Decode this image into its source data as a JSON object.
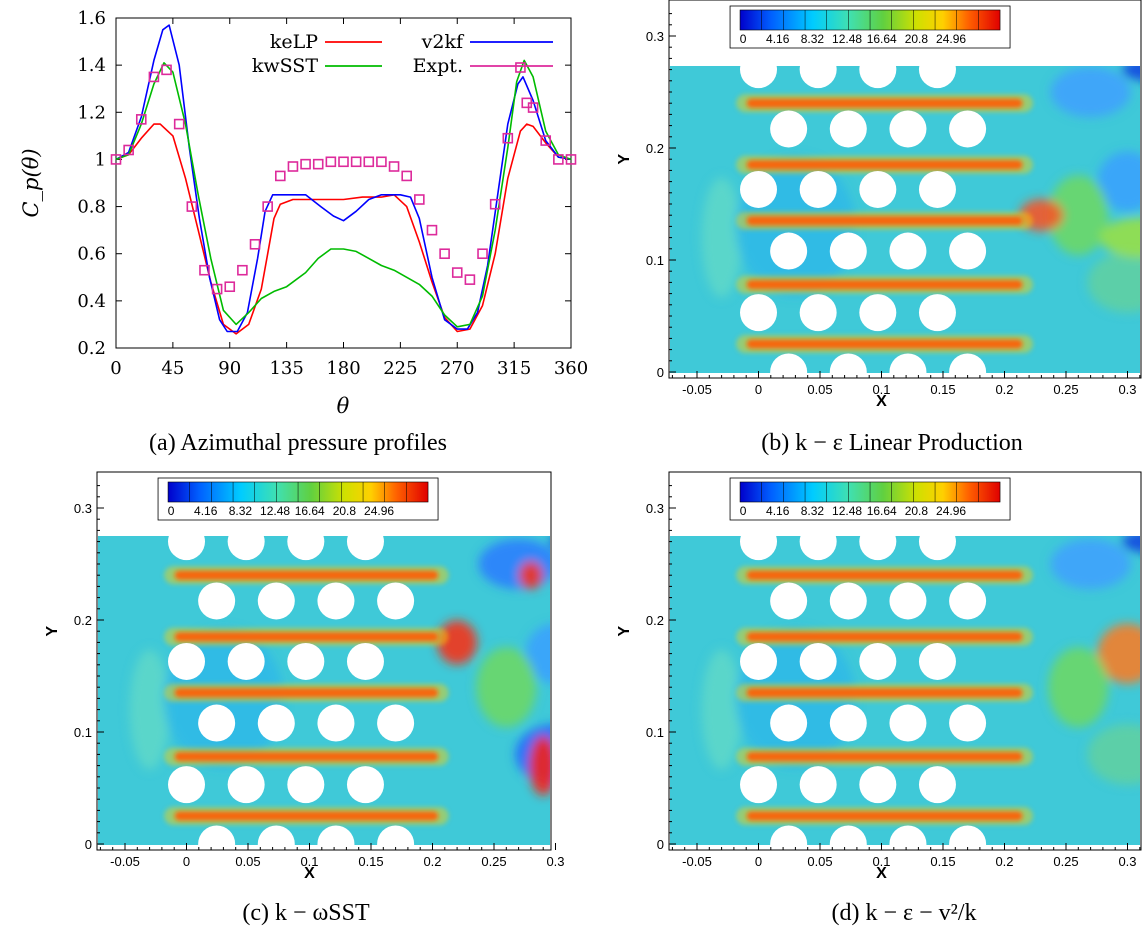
{
  "chart_data": [
    {
      "type": "line",
      "xlabel": "θ",
      "ylabel": "C_p(θ)",
      "xlim": [
        0,
        360
      ],
      "ylim": [
        0.2,
        1.6
      ],
      "x_ticks": [
        "0",
        "45",
        "90",
        "135",
        "180",
        "225",
        "270",
        "315",
        "360"
      ],
      "y_ticks": [
        "0.2",
        "0.4",
        "0.6",
        "0.8",
        "1",
        "1.2",
        "1.4",
        "1.6"
      ],
      "legend_placement": "top",
      "caption": "(a) Azimuthal pressure profiles",
      "series": [
        {
          "name": "keLP",
          "color": "#ff0000",
          "points": [
            [
              0,
              1.0
            ],
            [
              10,
              1.02
            ],
            [
              20,
              1.09
            ],
            [
              30,
              1.15
            ],
            [
              35,
              1.15
            ],
            [
              45,
              1.1
            ],
            [
              55,
              0.92
            ],
            [
              65,
              0.7
            ],
            [
              75,
              0.48
            ],
            [
              85,
              0.3
            ],
            [
              95,
              0.26
            ],
            [
              105,
              0.3
            ],
            [
              115,
              0.45
            ],
            [
              120,
              0.6
            ],
            [
              125,
              0.75
            ],
            [
              130,
              0.81
            ],
            [
              140,
              0.83
            ],
            [
              150,
              0.83
            ],
            [
              165,
              0.83
            ],
            [
              180,
              0.83
            ],
            [
              195,
              0.84
            ],
            [
              210,
              0.84
            ],
            [
              220,
              0.85
            ],
            [
              230,
              0.8
            ],
            [
              240,
              0.65
            ],
            [
              250,
              0.48
            ],
            [
              260,
              0.33
            ],
            [
              270,
              0.27
            ],
            [
              280,
              0.28
            ],
            [
              290,
              0.38
            ],
            [
              300,
              0.6
            ],
            [
              310,
              0.92
            ],
            [
              320,
              1.12
            ],
            [
              325,
              1.15
            ],
            [
              330,
              1.14
            ],
            [
              340,
              1.07
            ],
            [
              350,
              1.01
            ],
            [
              360,
              1.0
            ]
          ]
        },
        {
          "name": "v2kf",
          "color": "#0000ff",
          "points": [
            [
              0,
              1.0
            ],
            [
              10,
              1.03
            ],
            [
              20,
              1.18
            ],
            [
              30,
              1.42
            ],
            [
              37,
              1.55
            ],
            [
              42,
              1.57
            ],
            [
              50,
              1.4
            ],
            [
              58,
              1.05
            ],
            [
              66,
              0.75
            ],
            [
              74,
              0.5
            ],
            [
              82,
              0.32
            ],
            [
              88,
              0.27
            ],
            [
              96,
              0.27
            ],
            [
              104,
              0.35
            ],
            [
              112,
              0.58
            ],
            [
              118,
              0.78
            ],
            [
              124,
              0.85
            ],
            [
              135,
              0.85
            ],
            [
              150,
              0.85
            ],
            [
              162,
              0.8
            ],
            [
              172,
              0.76
            ],
            [
              180,
              0.74
            ],
            [
              190,
              0.78
            ],
            [
              200,
              0.83
            ],
            [
              210,
              0.85
            ],
            [
              225,
              0.85
            ],
            [
              233,
              0.84
            ],
            [
              240,
              0.75
            ],
            [
              250,
              0.5
            ],
            [
              260,
              0.32
            ],
            [
              270,
              0.28
            ],
            [
              278,
              0.28
            ],
            [
              286,
              0.35
            ],
            [
              294,
              0.55
            ],
            [
              302,
              0.85
            ],
            [
              310,
              1.15
            ],
            [
              318,
              1.32
            ],
            [
              322,
              1.35
            ],
            [
              330,
              1.25
            ],
            [
              340,
              1.08
            ],
            [
              350,
              1.01
            ],
            [
              360,
              1.0
            ]
          ]
        },
        {
          "name": "kwSST",
          "color": "#00bb00",
          "points": [
            [
              0,
              1.0
            ],
            [
              10,
              1.02
            ],
            [
              20,
              1.15
            ],
            [
              30,
              1.32
            ],
            [
              38,
              1.41
            ],
            [
              45,
              1.37
            ],
            [
              55,
              1.15
            ],
            [
              65,
              0.85
            ],
            [
              75,
              0.58
            ],
            [
              85,
              0.36
            ],
            [
              95,
              0.3
            ],
            [
              105,
              0.35
            ],
            [
              115,
              0.41
            ],
            [
              125,
              0.44
            ],
            [
              135,
              0.46
            ],
            [
              150,
              0.52
            ],
            [
              160,
              0.58
            ],
            [
              170,
              0.62
            ],
            [
              180,
              0.62
            ],
            [
              190,
              0.61
            ],
            [
              200,
              0.58
            ],
            [
              210,
              0.55
            ],
            [
              220,
              0.53
            ],
            [
              230,
              0.5
            ],
            [
              240,
              0.47
            ],
            [
              250,
              0.42
            ],
            [
              260,
              0.34
            ],
            [
              270,
              0.29
            ],
            [
              280,
              0.3
            ],
            [
              290,
              0.42
            ],
            [
              300,
              0.7
            ],
            [
              310,
              1.05
            ],
            [
              317,
              1.33
            ],
            [
              323,
              1.42
            ],
            [
              330,
              1.35
            ],
            [
              340,
              1.12
            ],
            [
              350,
              1.02
            ],
            [
              360,
              1.0
            ]
          ]
        },
        {
          "name": "Expt.",
          "color": "#dd2a9b",
          "marker": "square",
          "points": [
            [
              0,
              1.0
            ],
            [
              10,
              1.04
            ],
            [
              20,
              1.17
            ],
            [
              30,
              1.35
            ],
            [
              40,
              1.38
            ],
            [
              50,
              1.15
            ],
            [
              60,
              0.8
            ],
            [
              70,
              0.53
            ],
            [
              80,
              0.45
            ],
            [
              90,
              0.46
            ],
            [
              100,
              0.53
            ],
            [
              110,
              0.64
            ],
            [
              120,
              0.8
            ],
            [
              130,
              0.93
            ],
            [
              140,
              0.97
            ],
            [
              150,
              0.98
            ],
            [
              160,
              0.98
            ],
            [
              170,
              0.99
            ],
            [
              180,
              0.99
            ],
            [
              190,
              0.99
            ],
            [
              200,
              0.99
            ],
            [
              210,
              0.99
            ],
            [
              220,
              0.97
            ],
            [
              230,
              0.93
            ],
            [
              240,
              0.83
            ],
            [
              250,
              0.7
            ],
            [
              260,
              0.6
            ],
            [
              270,
              0.52
            ],
            [
              280,
              0.49
            ],
            [
              290,
              0.6
            ],
            [
              300,
              0.81
            ],
            [
              310,
              1.09
            ],
            [
              320,
              1.39
            ],
            [
              325,
              1.24
            ],
            [
              330,
              1.22
            ],
            [
              340,
              1.08
            ],
            [
              350,
              1.0
            ],
            [
              360,
              1.0
            ]
          ]
        }
      ]
    },
    {
      "type": "heatmap",
      "caption": "(b) k − ε Linear Production",
      "xlabel": "X",
      "ylabel": "Y",
      "x_ticks": [
        "-0.05",
        "0",
        "0.05",
        "0.1",
        "0.15",
        "0.2",
        "0.25",
        "0.3"
      ],
      "y_ticks": [
        "0",
        "0.1",
        "0.2",
        "0.3"
      ],
      "colorbar_ticks": [
        "0",
        "4.16",
        "8.32",
        "12.48",
        "16.64",
        "20.8",
        "24.96"
      ],
      "colormap": [
        "#0000cc",
        "#0070ff",
        "#00d0ff",
        "#40e0b0",
        "#60d040",
        "#c0e000",
        "#ffe000",
        "#ff8000",
        "#ff1000",
        "#c00000"
      ]
    },
    {
      "type": "heatmap",
      "caption": "(c) k − ωSST",
      "xlabel": "X",
      "ylabel": "Y",
      "x_ticks": [
        "-0.05",
        "0",
        "0.05",
        "0.1",
        "0.15",
        "0.2",
        "0.25",
        "0.3"
      ],
      "y_ticks": [
        "0",
        "0.1",
        "0.2",
        "0.3"
      ],
      "colorbar_ticks": [
        "0",
        "4.16",
        "8.32",
        "12.48",
        "16.64",
        "20.8",
        "24.96"
      ]
    },
    {
      "type": "heatmap",
      "caption": "(d) k − ε − v²/k",
      "xlabel": "X",
      "ylabel": "Y",
      "x_ticks": [
        "-0.05",
        "0",
        "0.05",
        "0.1",
        "0.15",
        "0.2",
        "0.25",
        "0.3"
      ],
      "y_ticks": [
        "0",
        "0.1",
        "0.2",
        "0.3"
      ],
      "colorbar_ticks": [
        "0",
        "4.16",
        "8.32",
        "12.48",
        "16.64",
        "20.8",
        "24.96"
      ]
    }
  ]
}
